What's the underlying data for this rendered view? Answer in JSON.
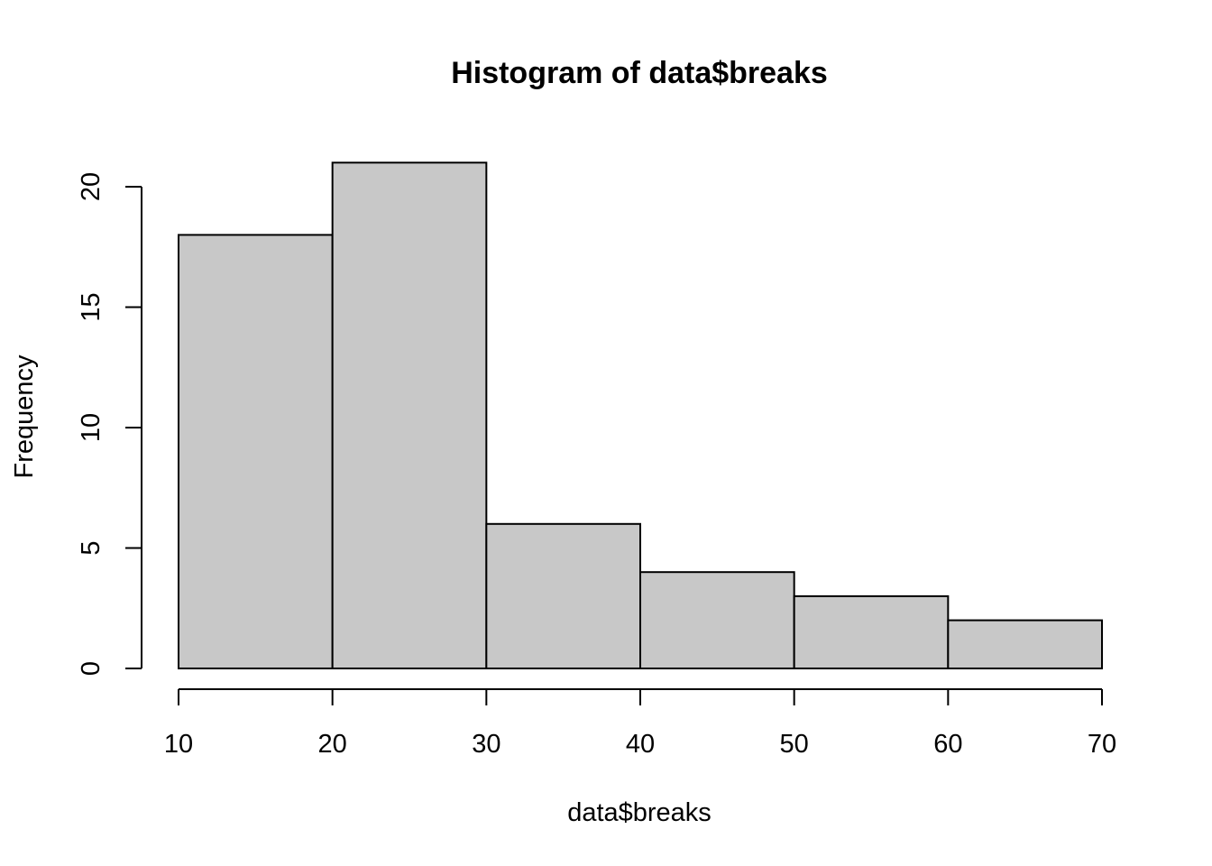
{
  "chart_data": {
    "type": "bar",
    "title": "Histogram of data$breaks",
    "xlabel": "data$breaks",
    "ylabel": "Frequency",
    "bins": [
      {
        "from": 10,
        "to": 20,
        "count": 18
      },
      {
        "from": 20,
        "to": 30,
        "count": 21
      },
      {
        "from": 30,
        "to": 40,
        "count": 6
      },
      {
        "from": 40,
        "to": 50,
        "count": 4
      },
      {
        "from": 50,
        "to": 60,
        "count": 3
      },
      {
        "from": 60,
        "to": 70,
        "count": 2
      }
    ],
    "x_ticks": [
      10,
      20,
      30,
      40,
      50,
      60,
      70
    ],
    "y_ticks": [
      0,
      5,
      10,
      15,
      20
    ],
    "xlim": [
      10,
      70
    ],
    "ylim": [
      0,
      21
    ],
    "grid": false,
    "legend": "none",
    "colors": {
      "bar_fill": "#c8c8c8",
      "bar_stroke": "#000000"
    }
  }
}
